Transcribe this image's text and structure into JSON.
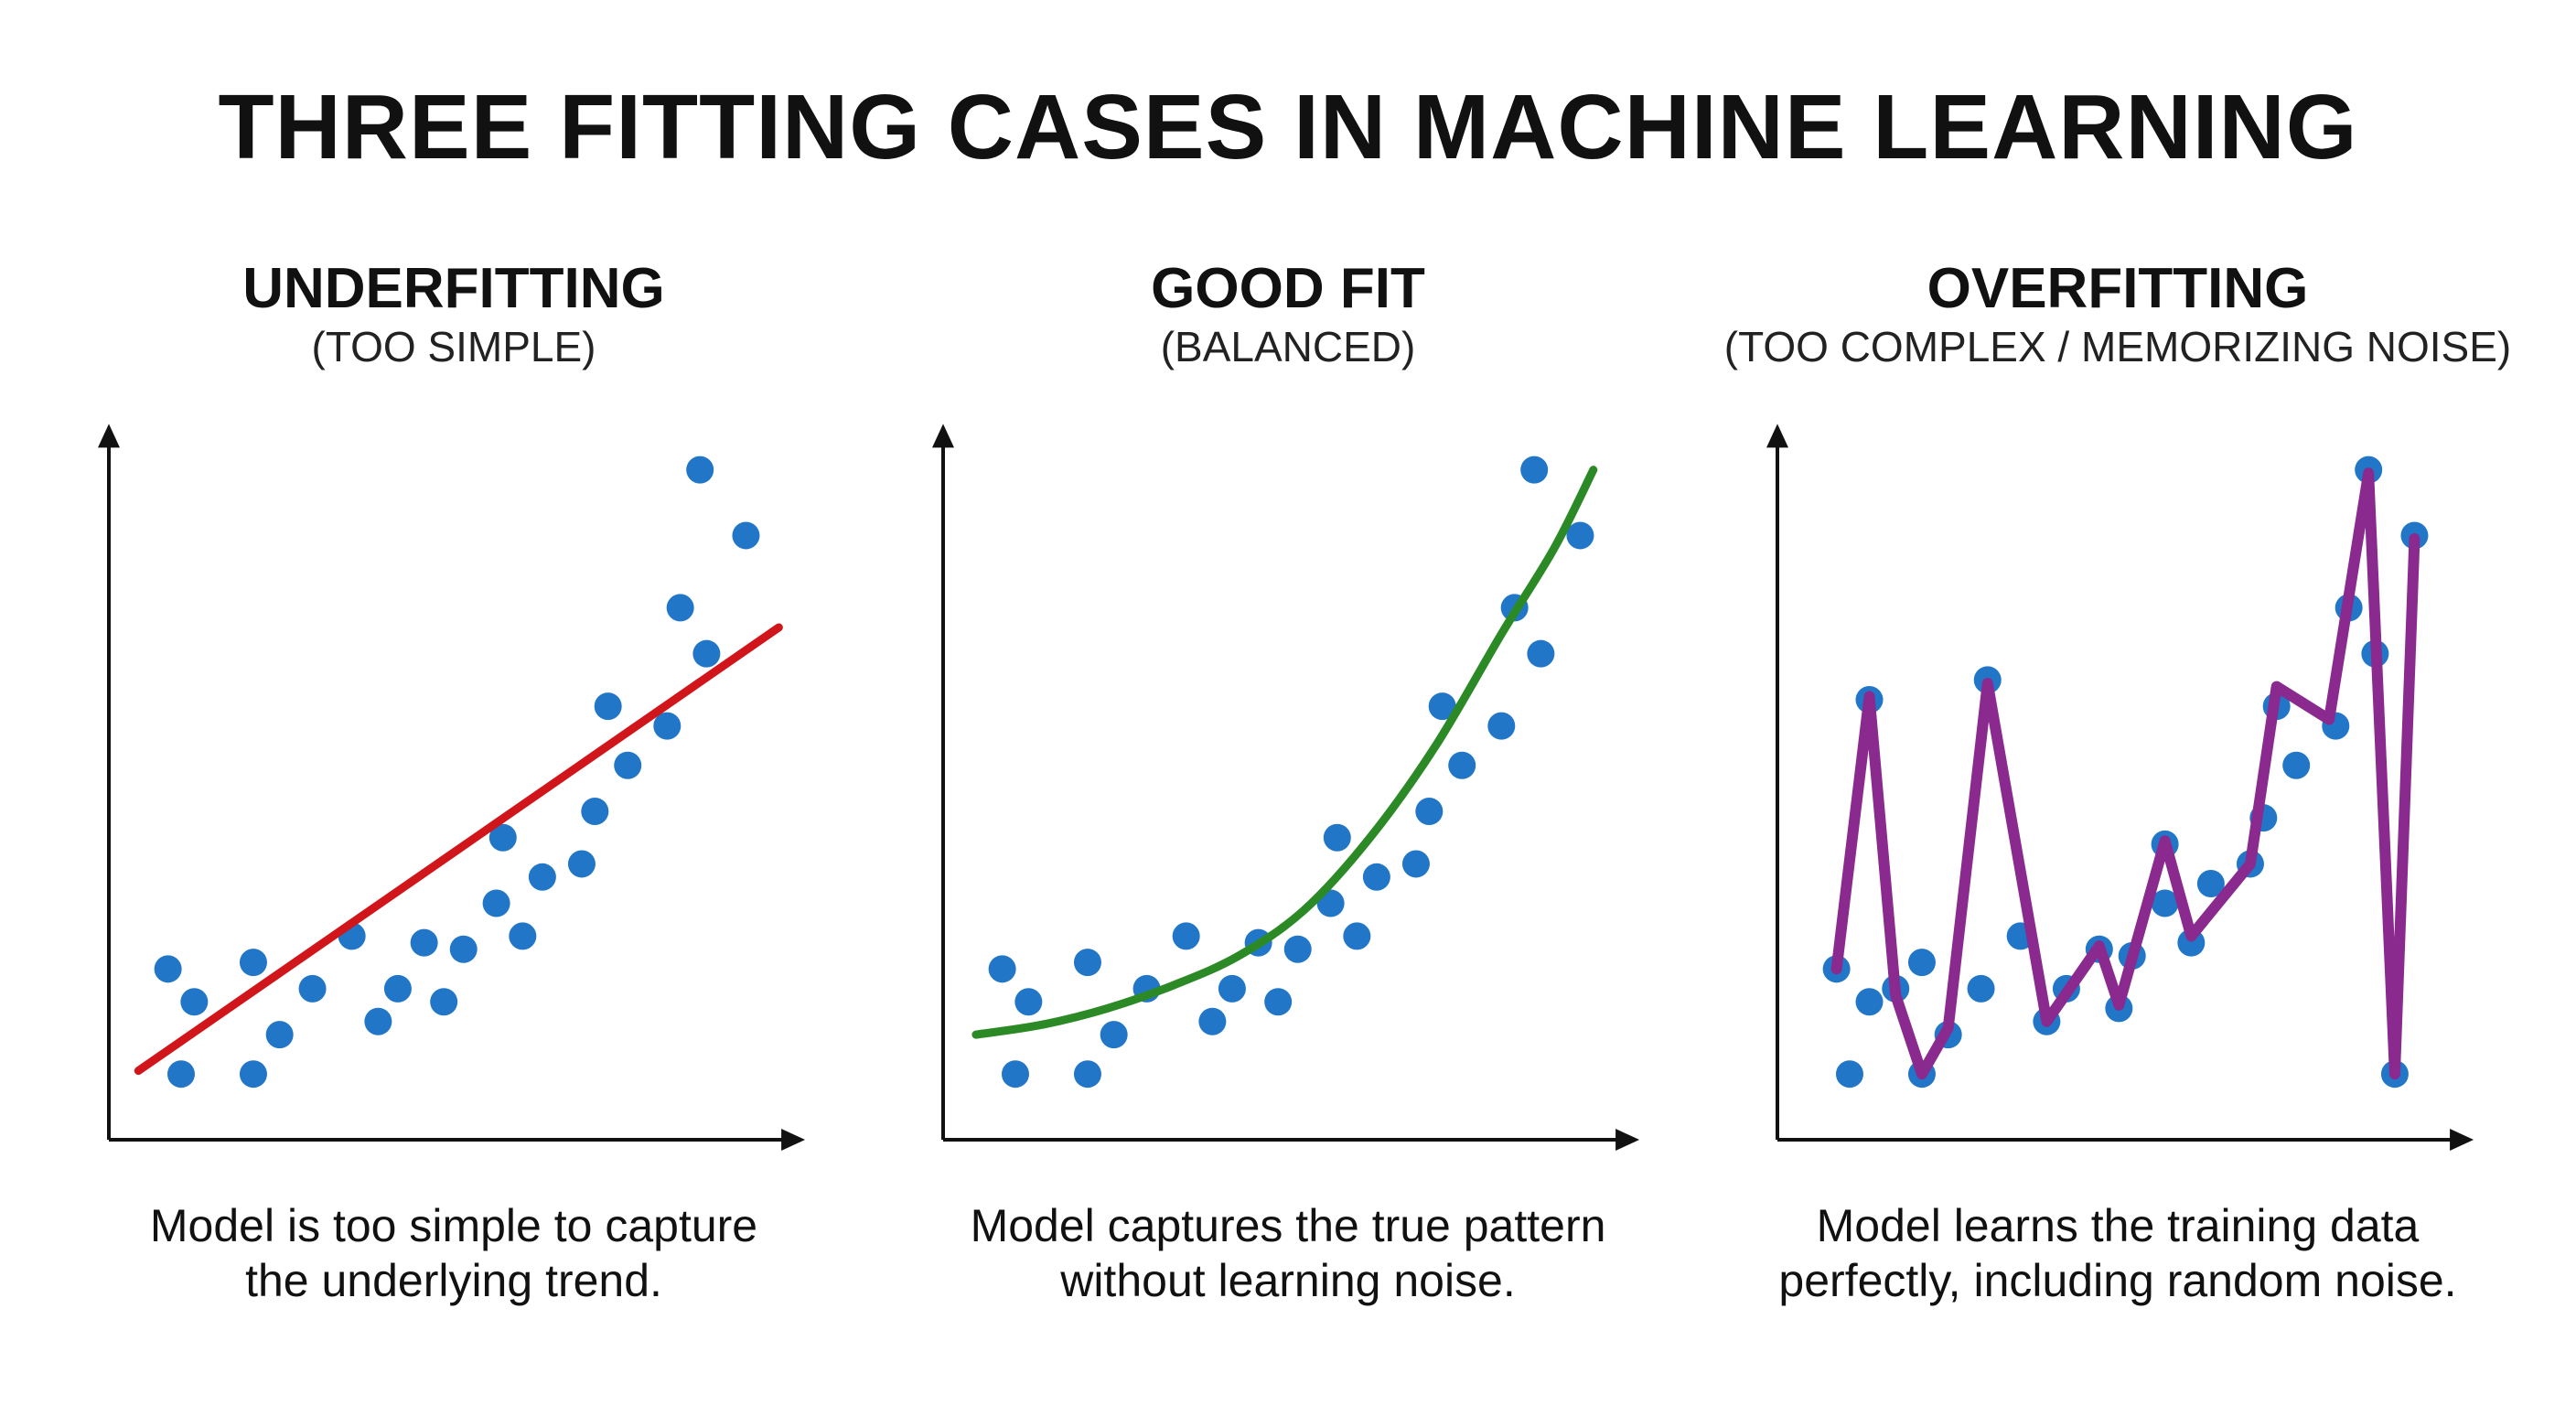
{
  "title": "THREE FITTING CASES IN MACHINE LEARNING",
  "colors": {
    "points": "#2176c8",
    "underfit_line": "#d0161b",
    "goodfit_line": "#2b8a25",
    "overfit_line": "#8a2a8e",
    "axes": "#111111"
  },
  "panels": [
    {
      "title": "UNDERFITTING",
      "subtitle": "(TOO SIMPLE)",
      "caption_line1": "Model is too simple to capture",
      "caption_line2": "the underlying trend."
    },
    {
      "title": "GOOD FIT",
      "subtitle": "(BALANCED)",
      "caption_line1": "Model captures the true pattern",
      "caption_line2": "without learning noise."
    },
    {
      "title": "OVERFITTING",
      "subtitle": "(TOO COMPLEX / MEMORIZING NOISE)",
      "caption_line1": "Model learns the training data",
      "caption_line2": "perfectly, including random noise."
    }
  ],
  "chart_data": [
    {
      "type": "scatter",
      "title": "UNDERFITTING",
      "xlim": [
        0,
        10.6
      ],
      "ylim": [
        0,
        10.9
      ],
      "grid": false,
      "ticks": false,
      "points": [
        [
          0.9,
          2.6
        ],
        [
          1.3,
          2.1
        ],
        [
          1.1,
          1.0
        ],
        [
          2.2,
          2.7
        ],
        [
          2.2,
          1.0
        ],
        [
          2.6,
          1.6
        ],
        [
          3.1,
          2.3
        ],
        [
          3.7,
          3.1
        ],
        [
          4.1,
          1.8
        ],
        [
          4.4,
          2.3
        ],
        [
          4.8,
          3.0
        ],
        [
          5.1,
          2.1
        ],
        [
          5.4,
          2.9
        ],
        [
          5.9,
          3.6
        ],
        [
          6.0,
          4.6
        ],
        [
          6.3,
          3.1
        ],
        [
          6.6,
          4.0
        ],
        [
          7.2,
          4.2
        ],
        [
          7.4,
          5.0
        ],
        [
          7.9,
          5.7
        ],
        [
          7.6,
          6.6
        ],
        [
          8.5,
          6.3
        ],
        [
          8.7,
          8.1
        ],
        [
          9.1,
          7.4
        ],
        [
          9.0,
          10.2
        ],
        [
          9.7,
          9.2
        ]
      ],
      "fit": {
        "kind": "linear",
        "points": [
          [
            0.45,
            1.05
          ],
          [
            10.2,
            7.8
          ]
        ]
      }
    },
    {
      "type": "scatter",
      "title": "GOOD FIT",
      "xlim": [
        0,
        10.6
      ],
      "ylim": [
        0,
        10.9
      ],
      "grid": false,
      "ticks": false,
      "points": [
        [
          0.9,
          2.6
        ],
        [
          1.3,
          2.1
        ],
        [
          1.1,
          1.0
        ],
        [
          2.2,
          2.7
        ],
        [
          2.2,
          1.0
        ],
        [
          2.6,
          1.6
        ],
        [
          3.1,
          2.3
        ],
        [
          3.7,
          3.1
        ],
        [
          4.1,
          1.8
        ],
        [
          4.4,
          2.3
        ],
        [
          4.8,
          3.0
        ],
        [
          5.1,
          2.1
        ],
        [
          5.4,
          2.9
        ],
        [
          5.9,
          3.6
        ],
        [
          6.0,
          4.6
        ],
        [
          6.3,
          3.1
        ],
        [
          6.6,
          4.0
        ],
        [
          7.2,
          4.2
        ],
        [
          7.4,
          5.0
        ],
        [
          7.9,
          5.7
        ],
        [
          7.6,
          6.6
        ],
        [
          8.5,
          6.3
        ],
        [
          8.7,
          8.1
        ],
        [
          9.1,
          7.4
        ],
        [
          9.0,
          10.2
        ],
        [
          9.7,
          9.2
        ]
      ],
      "fit": {
        "kind": "curve",
        "points": [
          [
            0.5,
            1.6
          ],
          [
            1.5,
            1.75
          ],
          [
            2.5,
            2.0
          ],
          [
            3.5,
            2.35
          ],
          [
            4.5,
            2.8
          ],
          [
            5.5,
            3.5
          ],
          [
            6.5,
            4.6
          ],
          [
            7.5,
            6.0
          ],
          [
            8.5,
            7.7
          ],
          [
            9.3,
            9.0
          ],
          [
            9.9,
            10.2
          ]
        ]
      }
    },
    {
      "type": "scatter",
      "title": "OVERFITTING",
      "xlim": [
        0,
        10.6
      ],
      "ylim": [
        0,
        10.9
      ],
      "grid": false,
      "ticks": false,
      "points": [
        [
          0.9,
          2.6
        ],
        [
          1.4,
          6.7
        ],
        [
          1.4,
          2.1
        ],
        [
          1.1,
          1.0
        ],
        [
          1.8,
          2.3
        ],
        [
          2.2,
          2.7
        ],
        [
          2.2,
          1.0
        ],
        [
          2.6,
          1.6
        ],
        [
          3.1,
          2.3
        ],
        [
          3.2,
          7.0
        ],
        [
          3.7,
          3.1
        ],
        [
          4.1,
          1.8
        ],
        [
          4.4,
          2.3
        ],
        [
          4.9,
          2.9
        ],
        [
          5.2,
          2.0
        ],
        [
          5.4,
          2.8
        ],
        [
          5.9,
          4.5
        ],
        [
          5.9,
          3.6
        ],
        [
          6.3,
          3.0
        ],
        [
          6.6,
          3.9
        ],
        [
          7.2,
          4.2
        ],
        [
          7.4,
          4.9
        ],
        [
          7.6,
          6.6
        ],
        [
          7.9,
          5.7
        ],
        [
          8.5,
          6.3
        ],
        [
          8.7,
          8.1
        ],
        [
          9.1,
          7.4
        ],
        [
          9.0,
          10.2
        ],
        [
          9.4,
          1.0
        ],
        [
          9.7,
          9.2
        ]
      ],
      "fit": {
        "kind": "polyline",
        "points": [
          [
            0.9,
            2.6
          ],
          [
            1.4,
            6.75
          ],
          [
            1.8,
            2.2
          ],
          [
            2.2,
            1.0
          ],
          [
            2.6,
            1.7
          ],
          [
            3.2,
            6.95
          ],
          [
            4.1,
            1.8
          ],
          [
            4.9,
            2.95
          ],
          [
            5.2,
            2.05
          ],
          [
            5.9,
            4.55
          ],
          [
            6.3,
            3.1
          ],
          [
            7.2,
            4.2
          ],
          [
            7.6,
            6.9
          ],
          [
            8.4,
            6.4
          ],
          [
            9.0,
            10.15
          ],
          [
            9.4,
            1.0
          ],
          [
            9.7,
            9.15
          ]
        ]
      }
    }
  ]
}
